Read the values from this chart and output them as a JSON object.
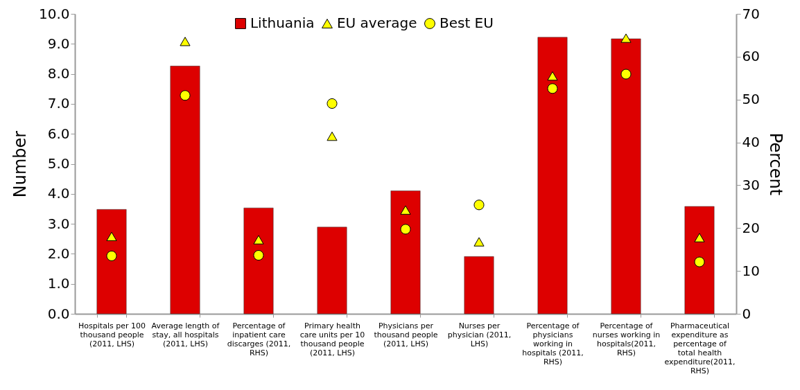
{
  "chart_data": {
    "type": "bar",
    "ylabel": "Number",
    "y2label": "Percent",
    "categories": [
      "Hospitals per 100 thousand people (2011, LHS)",
      "Average length of stay, all hospitals (2011, LHS)",
      "Percentage of inpatient care discarges  (2011, RHS)",
      "Primary health care units per 10 thousand people (2011, LHS)",
      "Physicians per thousand people (2011, LHS)",
      "Nurses per physician  (2011, LHS)",
      "Percentage of physicians working in hospitals (2011, RHS)",
      "Percentage of nurses working in hospitals(2011, RHS)",
      "Pharmaceutical expenditure as percentage of total health expenditure(2011, RHS)"
    ],
    "series": [
      {
        "name": "Lithuania",
        "color": "#dd0000",
        "values": [
          3.48,
          8.26,
          3.53,
          2.89,
          4.1,
          1.91,
          9.22,
          9.17,
          3.58
        ]
      },
      {
        "name": "EU average",
        "type": "scatter",
        "marker": "triangle",
        "color": "#ffff00",
        "values": [
          2.58,
          9.08,
          2.47,
          5.92,
          3.46,
          2.4,
          7.93,
          9.19,
          2.54
        ]
      },
      {
        "name": "Best EU",
        "type": "scatter",
        "marker": "circle",
        "color": "#ffff00",
        "values": [
          1.93,
          7.28,
          1.95,
          7.01,
          2.82,
          3.63,
          7.51,
          7.99,
          1.73
        ]
      }
    ],
    "ylim": [
      0,
      10
    ],
    "yticks": [
      {
        "value": 0,
        "label": "0.0"
      },
      {
        "value": 1,
        "label": "1.0"
      },
      {
        "value": 2,
        "label": "2.0"
      },
      {
        "value": 3,
        "label": "3.0"
      },
      {
        "value": 4,
        "label": "4.0"
      },
      {
        "value": 5,
        "label": "5.0"
      },
      {
        "value": 6,
        "label": "6.0"
      },
      {
        "value": 7,
        "label": "7.0"
      },
      {
        "value": 8,
        "label": "8.0"
      },
      {
        "value": 9,
        "label": "9.0"
      },
      {
        "value": 10,
        "label": "10.0"
      }
    ],
    "y2lim": [
      0,
      70
    ],
    "y2ticks": [
      0,
      10,
      20,
      30,
      40,
      50,
      60,
      70
    ],
    "legend": "top",
    "grid": false
  }
}
